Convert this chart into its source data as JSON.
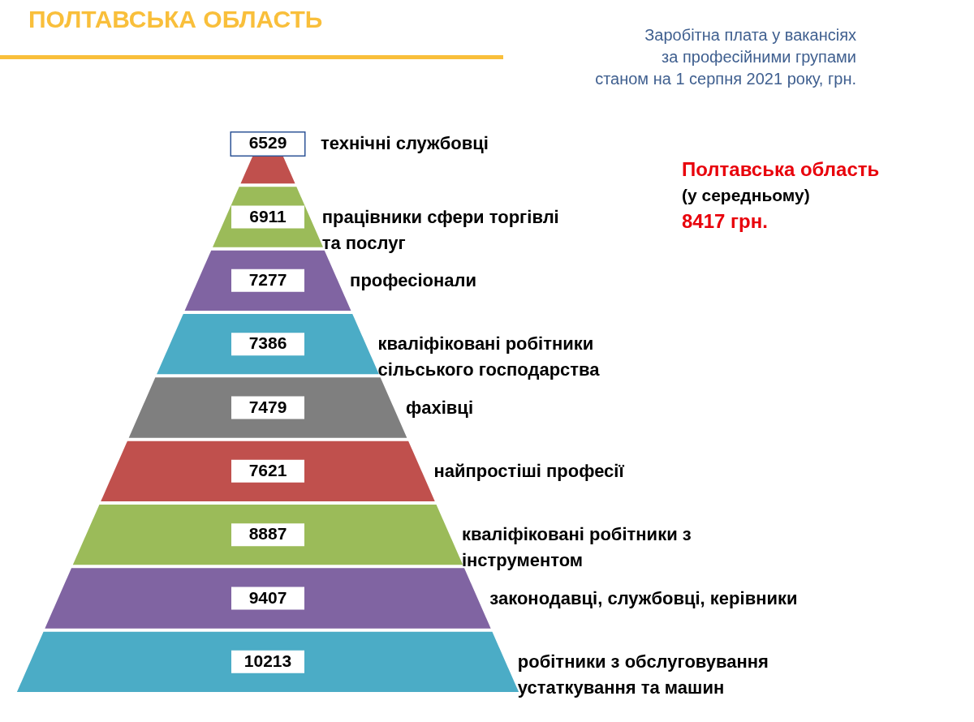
{
  "chart_data": {
    "type": "other",
    "title": "ПОЛТАВСЬКА ОБЛАСТЬ",
    "subtitle": "Заробітна плата у вакансіях\nза професійними групами\nстаном на 1 серпня 2021 року, грн.",
    "categories": [
      "технічні службовці",
      "працівники сфери торгівлі\nта послуг",
      "професіонали",
      "кваліфіковані робітники\nсільського господарства",
      "фахівці",
      "найпростіші професії",
      "кваліфіковані робітники з\nінструментом",
      "законодавці, службовці, керівники",
      "робітники з обслуговування\nустаткування та машин"
    ],
    "values": [
      6529,
      6911,
      7277,
      7386,
      7479,
      7621,
      8887,
      9407,
      10213
    ],
    "colors": [
      "#c0504d",
      "#9bbb59",
      "#8064a2",
      "#4bacc6",
      "#7f7f7f",
      "#c0504d",
      "#9bbb59",
      "#8064a2",
      "#4bacc6"
    ],
    "data_labels": true,
    "annotations": [
      "Полтавська область",
      "(у середньому)",
      "8417 грн."
    ]
  }
}
